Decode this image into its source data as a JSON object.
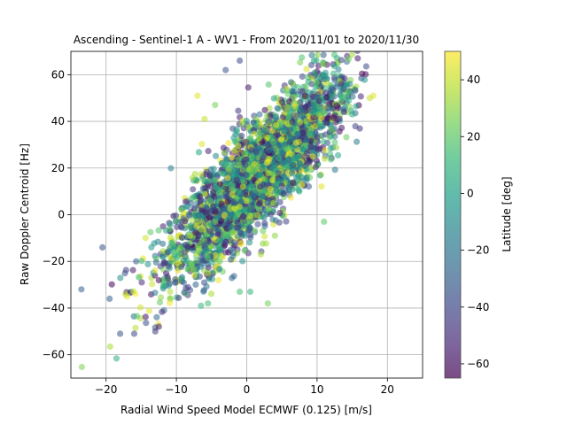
{
  "chart_data": {
    "type": "scatter",
    "title": "Ascending - Sentinel-1 A - WV1 - From 2020/11/01 to 2020/11/30",
    "xlabel": "Radial Wind Speed Model ECMWF (0.125) [m/s]",
    "ylabel": "Raw Doppler Centroid [Hz]",
    "xlim": [
      -25,
      25
    ],
    "ylim": [
      -70,
      70
    ],
    "xticks": [
      -20,
      -10,
      0,
      10,
      20
    ],
    "yticks": [
      -60,
      -40,
      -20,
      0,
      20,
      40,
      60
    ],
    "xtick_labels": [
      "−20",
      "−10",
      "0",
      "10",
      "20"
    ],
    "ytick_labels": [
      "−60",
      "−40",
      "−20",
      "0",
      "20",
      "40",
      "60"
    ],
    "grid": true,
    "point_alpha": 0.55,
    "colorbar": {
      "label": "Latitude [deg]",
      "range": [
        -65,
        50
      ],
      "ticks": [
        -60,
        -40,
        -20,
        0,
        20,
        40
      ],
      "tick_labels": [
        "−60",
        "−40",
        "−20",
        "0",
        "20",
        "40"
      ],
      "colormap": "viridis",
      "stops": [
        "#440154",
        "#482878",
        "#3e4989",
        "#31688e",
        "#26828e",
        "#1f9e89",
        "#35b779",
        "#6ece58",
        "#b5de2b",
        "#fde725"
      ]
    },
    "trend": {
      "slope_hz_per_ms": 2.9,
      "intercept_hz": 12,
      "spread_hz": 11,
      "x_range": [
        -24,
        17
      ],
      "latitude_range": [
        -65,
        50
      ]
    },
    "sample_points": [
      {
        "x": -23.5,
        "y": -32,
        "lat": -30
      },
      {
        "x": -20.5,
        "y": -14,
        "lat": -35
      },
      {
        "x": -19.5,
        "y": -36,
        "lat": -30
      },
      {
        "x": -18,
        "y": -51,
        "lat": -35
      },
      {
        "x": -16,
        "y": -51,
        "lat": -40
      },
      {
        "x": -13,
        "y": -50,
        "lat": -45
      },
      {
        "x": -12.5,
        "y": -48,
        "lat": -55
      },
      {
        "x": -17,
        "y": -35,
        "lat": 45
      },
      {
        "x": -7,
        "y": 51,
        "lat": 45
      },
      {
        "x": -6,
        "y": 41,
        "lat": 40
      },
      {
        "x": -4.5,
        "y": 47,
        "lat": 25
      },
      {
        "x": -3,
        "y": 62,
        "lat": -35
      },
      {
        "x": -1,
        "y": 66,
        "lat": -40
      },
      {
        "x": 18,
        "y": 51,
        "lat": 45
      },
      {
        "x": 17.5,
        "y": 50,
        "lat": 40
      },
      {
        "x": 15,
        "y": 43,
        "lat": 5
      },
      {
        "x": 14.5,
        "y": 49,
        "lat": 5
      },
      {
        "x": 11,
        "y": -3,
        "lat": 20
      },
      {
        "x": 3,
        "y": -38,
        "lat": 25
      },
      {
        "x": 0.5,
        "y": -33,
        "lat": 10
      },
      {
        "x": -1,
        "y": -33,
        "lat": 15
      },
      {
        "x": 2,
        "y": -17,
        "lat": 35
      },
      {
        "x": 4,
        "y": -9,
        "lat": 30
      },
      {
        "x": -5.5,
        "y": -38,
        "lat": 15
      },
      {
        "x": -6.5,
        "y": -39,
        "lat": 10
      }
    ]
  }
}
